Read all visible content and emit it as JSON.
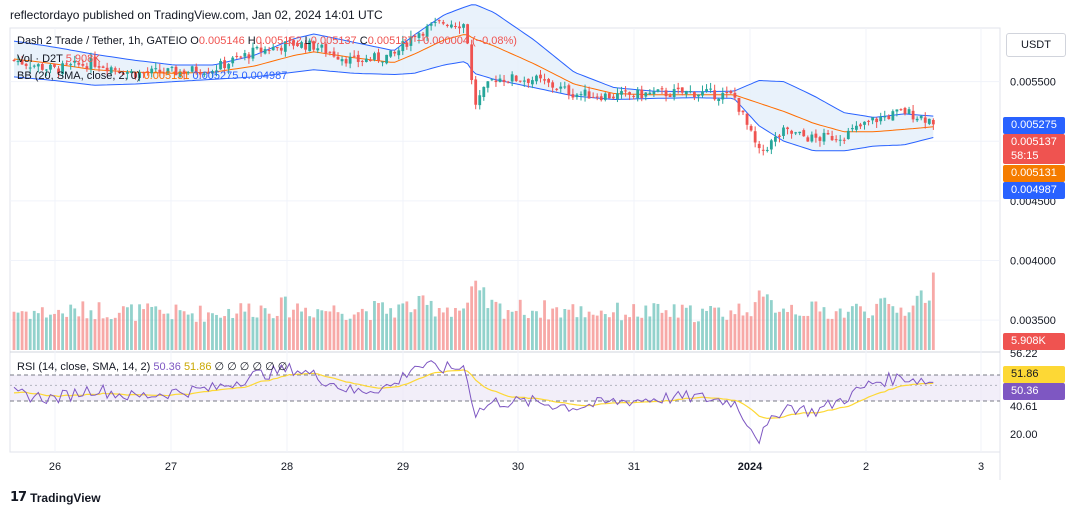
{
  "header": "reflectordayo published on TradingView.com, Jan 02, 2024 14:01 UTC",
  "legend": {
    "symbol": "Dash 2 Trade / Tether, 1h, GATEIO",
    "o_label": "O",
    "o": "0.005146",
    "h_label": "H",
    "h": "0.005152",
    "l_label": "L",
    "l": "0.005137",
    "c_label": "C",
    "c": "0.005137",
    "change": "−0.000004 (−0.08%)",
    "vol_label": "Vol · D2T",
    "vol": "5.908K",
    "bb_label": "BB (20, SMA, close, 2, 0)",
    "bb_basis": "0.005131",
    "bb_upper": "0.005275",
    "bb_lower": "0.004987",
    "rsi_label": "RSI (14, close, SMA, 14, 2)",
    "rsi": "50.36",
    "rsi_ma": "51.86",
    "rsi_extra": "∅ ∅ ∅ ∅ ∅ ∅"
  },
  "currency_button": "USDT",
  "price_axis": [
    "0.005500",
    "0.005000",
    "0.004500",
    "0.004000",
    "0.003500"
  ],
  "price_tags": {
    "bb_upper": "0.005275",
    "last": "0.005137",
    "countdown": "58:15",
    "bb_basis": "0.005131",
    "bb_lower": "0.004987",
    "volume": "5.908K"
  },
  "rsi_axis": [
    "56.22",
    "40.61",
    "20.00"
  ],
  "rsi_tags": {
    "ma": "51.86",
    "rsi": "50.36"
  },
  "time_axis": [
    "26",
    "27",
    "28",
    "29",
    "30",
    "31",
    "2024",
    "2",
    "3"
  ],
  "colors": {
    "up": "#26a69a",
    "down": "#ef5350",
    "bb_band": "#2962ff",
    "bb_basis": "#ff6d00",
    "bb_fill": "#e3effa",
    "rsi_line": "#7e57c2",
    "rsi_ma": "#fdd835",
    "rsi_fill": "#ede7f6",
    "tag_blue": "#2962ff",
    "tag_red": "#ef5350",
    "tag_orange": "#f57c00"
  },
  "logo": "TradingView",
  "chart_data": {
    "type": "candlestick",
    "title": "Dash 2 Trade / Tether, 1h, GATEIO",
    "x_ticks": [
      "26",
      "27",
      "28",
      "29",
      "30",
      "31",
      "2024",
      "2",
      "3"
    ],
    "ylim": [
      0.00325,
      0.00595
    ],
    "rsi_ylim": [
      10,
      70
    ],
    "rsi_levels": [
      56.22,
      40.61
    ],
    "anchors": [
      {
        "x": 0,
        "close": 0.00568,
        "basis": 0.00569,
        "width": 0.0003,
        "rsi": 45,
        "vol": 3200
      },
      {
        "x": 40,
        "close": 0.0056,
        "basis": 0.00565,
        "width": 0.00028,
        "rsi": 42,
        "vol": 3000
      },
      {
        "x": 80,
        "close": 0.00566,
        "basis": 0.0056,
        "width": 0.00026,
        "rsi": 48,
        "vol": 3300
      },
      {
        "x": 120,
        "close": 0.00557,
        "basis": 0.00558,
        "width": 0.0002,
        "rsi": 43,
        "vol": 3100
      },
      {
        "x": 160,
        "close": 0.00558,
        "basis": 0.00557,
        "width": 0.00014,
        "rsi": 46,
        "vol": 3000
      },
      {
        "x": 200,
        "close": 0.00561,
        "basis": 0.00558,
        "width": 0.00012,
        "rsi": 48,
        "vol": 3000
      },
      {
        "x": 240,
        "close": 0.00575,
        "basis": 0.00563,
        "width": 0.00018,
        "rsi": 56,
        "vol": 3400
      },
      {
        "x": 280,
        "close": 0.00582,
        "basis": 0.00572,
        "width": 0.00028,
        "rsi": 60,
        "vol": 3500
      },
      {
        "x": 300,
        "close": 0.0058,
        "basis": 0.00575,
        "width": 0.0003,
        "rsi": 56,
        "vol": 3300
      },
      {
        "x": 340,
        "close": 0.00567,
        "basis": 0.0057,
        "width": 0.00026,
        "rsi": 46,
        "vol": 3200
      },
      {
        "x": 380,
        "close": 0.00572,
        "basis": 0.00566,
        "width": 0.0002,
        "rsi": 50,
        "vol": 3300
      },
      {
        "x": 400,
        "close": 0.0059,
        "basis": 0.00573,
        "width": 0.00032,
        "rsi": 62,
        "vol": 3600
      },
      {
        "x": 430,
        "close": 0.006,
        "basis": 0.00585,
        "width": 0.00042,
        "rsi": 60,
        "vol": 3500
      },
      {
        "x": 452,
        "close": 0.00598,
        "basis": 0.0059,
        "width": 0.00046,
        "rsi": 61,
        "vol": 3300
      },
      {
        "x": 460,
        "close": 0.0053,
        "basis": 0.00586,
        "width": 0.00058,
        "rsi": 33,
        "vol": 4800
      },
      {
        "x": 480,
        "close": 0.00553,
        "basis": 0.0058,
        "width": 0.00056,
        "rsi": 40,
        "vol": 3400
      },
      {
        "x": 520,
        "close": 0.00552,
        "basis": 0.00565,
        "width": 0.0004,
        "rsi": 40,
        "vol": 3300
      },
      {
        "x": 560,
        "close": 0.0054,
        "basis": 0.00548,
        "width": 0.0002,
        "rsi": 37,
        "vol": 3200
      },
      {
        "x": 600,
        "close": 0.00538,
        "basis": 0.0054,
        "width": 0.0001,
        "rsi": 40,
        "vol": 3100
      },
      {
        "x": 640,
        "close": 0.0054,
        "basis": 0.00539,
        "width": 6e-05,
        "rsi": 42,
        "vol": 3100
      },
      {
        "x": 680,
        "close": 0.00541,
        "basis": 0.00539,
        "width": 5e-05,
        "rsi": 43,
        "vol": 3000
      },
      {
        "x": 720,
        "close": 0.00538,
        "basis": 0.00539,
        "width": 6e-05,
        "rsi": 40,
        "vol": 3100
      },
      {
        "x": 745,
        "close": 0.0049,
        "basis": 0.00532,
        "width": 0.00038,
        "rsi": 18,
        "vol": 3900
      },
      {
        "x": 770,
        "close": 0.00508,
        "basis": 0.00525,
        "width": 0.0005,
        "rsi": 38,
        "vol": 3600
      },
      {
        "x": 800,
        "close": 0.00502,
        "basis": 0.00515,
        "width": 0.00046,
        "rsi": 34,
        "vol": 3200
      },
      {
        "x": 830,
        "close": 0.00505,
        "basis": 0.00508,
        "width": 0.00032,
        "rsi": 42,
        "vol": 3100
      },
      {
        "x": 860,
        "close": 0.00518,
        "basis": 0.00508,
        "width": 0.00024,
        "rsi": 52,
        "vol": 3500
      },
      {
        "x": 890,
        "close": 0.00525,
        "basis": 0.0051,
        "width": 0.00026,
        "rsi": 55,
        "vol": 3300
      },
      {
        "x": 932,
        "close": 0.005137,
        "basis": 0.005131,
        "width": 0.000144,
        "rsi": 50.36,
        "vol": 5908
      }
    ]
  }
}
